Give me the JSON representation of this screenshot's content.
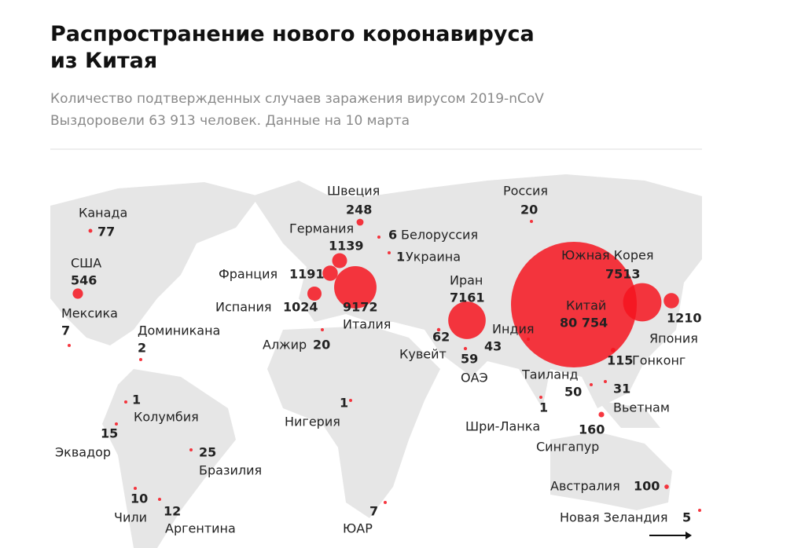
{
  "header": {
    "title": [
      "Распространение нового коронавируса",
      "из Китая"
    ],
    "subtitle": [
      "Количество подтвержденных случаев заражения вирусом 2019-nCoV",
      "Выздоровели 63 913 человек. Данные на 10 марта"
    ]
  },
  "points": [
    {
      "name": "Канада",
      "value": 77
    },
    {
      "name": "США",
      "value": 546
    },
    {
      "name": "Мексика",
      "value": 7
    },
    {
      "name": "Доминикана",
      "value": 2
    },
    {
      "name": "Колумбия",
      "value": 1
    },
    {
      "name": "Эквадор",
      "value": 15
    },
    {
      "name": "Бразилия",
      "value": 25
    },
    {
      "name": "Чили",
      "value": 10
    },
    {
      "name": "Аргентина",
      "value": 12
    },
    {
      "name": "Швеция",
      "value": 248
    },
    {
      "name": "Германия",
      "value": 1139
    },
    {
      "name": "Белоруссия",
      "value": 6
    },
    {
      "name": "Украина",
      "value": 1
    },
    {
      "name": "Франция",
      "value": 1191
    },
    {
      "name": "Испания",
      "value": 1024
    },
    {
      "name": "Италия",
      "value": 9172
    },
    {
      "name": "Алжир",
      "value": 20
    },
    {
      "name": "Иран",
      "value": 7161
    },
    {
      "name": "Индия",
      "value": 43
    },
    {
      "name": "Кувейт",
      "value": 62
    },
    {
      "name": "ОАЭ",
      "value": 59
    },
    {
      "name": "Россия",
      "value": 20
    },
    {
      "name": "Южная Корея",
      "value": 7513
    },
    {
      "name": "Китай",
      "value": 80754,
      "value_label": "80 754"
    },
    {
      "name": "Япония",
      "value": 1210
    },
    {
      "name": "Гонконг",
      "value": 115
    },
    {
      "name": "Таиланд",
      "value": 50
    },
    {
      "name": "Вьетнам",
      "value": 31
    },
    {
      "name": "Шри-Ланка",
      "value": 1
    },
    {
      "name": "Сингапур",
      "value": 160
    },
    {
      "name": "Нигерия",
      "value": 1
    },
    {
      "name": "ЮАР",
      "value": 7
    },
    {
      "name": "Австралия",
      "value": 100
    },
    {
      "name": "Новая Зеландия",
      "value": 5
    }
  ]
}
